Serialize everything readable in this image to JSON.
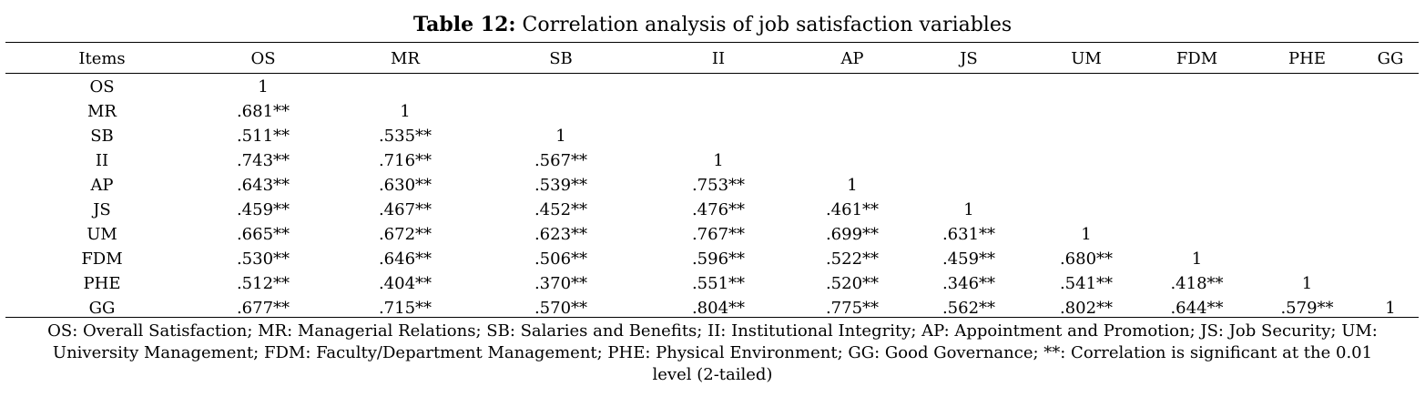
{
  "caption": {
    "label": "Table 12:",
    "title": "Correlation analysis of job satisfaction variables"
  },
  "table": {
    "columns": [
      "Items",
      "OS",
      "MR",
      "SB",
      "II",
      "AP",
      "JS",
      "UM",
      "FDM",
      "PHE",
      "GG"
    ],
    "rows": [
      {
        "item": "OS",
        "values": [
          "1",
          "",
          "",
          "",
          "",
          "",
          "",
          "",
          "",
          ""
        ]
      },
      {
        "item": "MR",
        "values": [
          ".681**",
          "1",
          "",
          "",
          "",
          "",
          "",
          "",
          "",
          ""
        ]
      },
      {
        "item": "SB",
        "values": [
          ".511**",
          ".535**",
          "1",
          "",
          "",
          "",
          "",
          "",
          "",
          ""
        ]
      },
      {
        "item": "II",
        "values": [
          ".743**",
          ".716**",
          ".567**",
          "1",
          "",
          "",
          "",
          "",
          "",
          ""
        ]
      },
      {
        "item": "AP",
        "values": [
          ".643**",
          ".630**",
          ".539**",
          ".753**",
          "1",
          "",
          "",
          "",
          "",
          ""
        ]
      },
      {
        "item": "JS",
        "values": [
          ".459**",
          ".467**",
          ".452**",
          ".476**",
          ".461**",
          "1",
          "",
          "",
          "",
          ""
        ]
      },
      {
        "item": "UM",
        "values": [
          ".665**",
          ".672**",
          ".623**",
          ".767**",
          ".699**",
          ".631**",
          "1",
          "",
          "",
          ""
        ]
      },
      {
        "item": "FDM",
        "values": [
          ".530**",
          ".646**",
          ".506**",
          ".596**",
          ".522**",
          ".459**",
          ".680**",
          "1",
          "",
          ""
        ]
      },
      {
        "item": "PHE",
        "values": [
          ".512**",
          ".404**",
          ".370**",
          ".551**",
          ".520**",
          ".346**",
          ".541**",
          ".418**",
          "1",
          ""
        ]
      },
      {
        "item": "GG",
        "values": [
          ".677**",
          ".715**",
          ".570**",
          ".804**",
          ".775**",
          ".562**",
          ".802**",
          ".644**",
          ".579**",
          "1"
        ]
      }
    ]
  },
  "footnote": {
    "line1": "OS: Overall Satisfaction; MR: Managerial Relations; SB: Salaries and Benefits; II: Institutional Integrity; AP: Appointment and Promotion; JS: Job Security; UM:",
    "line2": "University Management; FDM: Faculty/Department Management; PHE: Physical Environment; GG: Good Governance; **: Correlation is significant at the 0.01",
    "line3": "level (2-tailed)"
  }
}
